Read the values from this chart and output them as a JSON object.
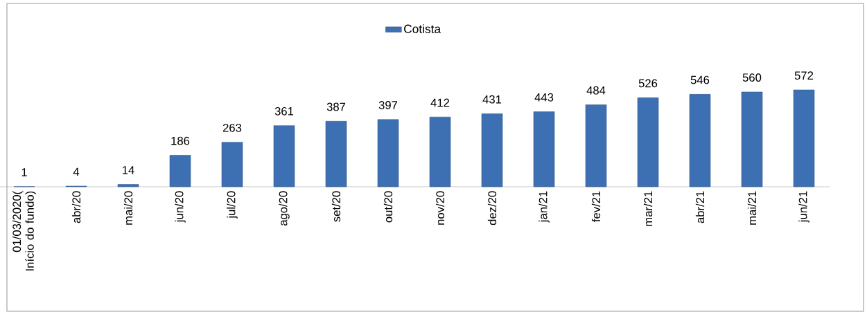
{
  "chart_data": {
    "type": "bar",
    "categories": [
      "01/03/2020( Início do fundo)",
      "abr/20",
      "mai/20",
      "jun/20",
      "jul/20",
      "ago/20",
      "set/20",
      "out/20",
      "nov/20",
      "dez/20",
      "jan/21",
      "fev/21",
      "mar/21",
      "abr/21",
      "mai/21",
      "jun/21"
    ],
    "series": [
      {
        "name": "Cotista",
        "color": "#3d70b3",
        "values": [
          1,
          4,
          14,
          186,
          263,
          361,
          387,
          397,
          412,
          431,
          443,
          484,
          526,
          546,
          560,
          572
        ]
      }
    ],
    "data_labels": true,
    "legend": "top"
  }
}
